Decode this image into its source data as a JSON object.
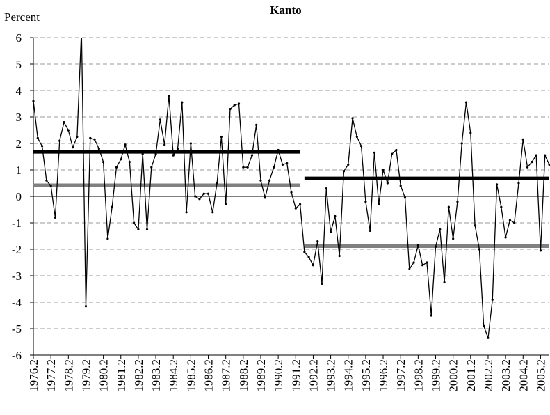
{
  "chart_data": {
    "type": "line",
    "title": "Kanto",
    "ylabel": "Percent",
    "categories": [
      "1976.2",
      null,
      null,
      null,
      "1977.2",
      null,
      null,
      null,
      "1978.2",
      null,
      null,
      null,
      "1979.2",
      null,
      null,
      null,
      "1980.2",
      null,
      null,
      null,
      "1981.2",
      null,
      null,
      null,
      "1982.2",
      null,
      null,
      null,
      "1983.2",
      null,
      null,
      null,
      "1984.2",
      null,
      null,
      null,
      "1985.2",
      null,
      null,
      null,
      "1986.2",
      null,
      null,
      null,
      "1987.2",
      null,
      null,
      null,
      "1988.2",
      null,
      null,
      null,
      "1989.2",
      null,
      null,
      null,
      "1990.2",
      null,
      null,
      null,
      "1991.2",
      null,
      null,
      null,
      "1992.2",
      null,
      null,
      null,
      "1993.2",
      null,
      null,
      null,
      "1994.2",
      null,
      null,
      null,
      "1995.2",
      null,
      null,
      null,
      "1996.2",
      null,
      null,
      null,
      "1997.2",
      null,
      null,
      null,
      "1998.2",
      null,
      null,
      null,
      "1999.2",
      null,
      null,
      null,
      "2000.2",
      null,
      null,
      null,
      "2001.2",
      null,
      null,
      null,
      "2002.2",
      null,
      null,
      null,
      "2003.2",
      null,
      null,
      null,
      "2004.2",
      null,
      null,
      null,
      "2005.2",
      null,
      null
    ],
    "series": [
      {
        "color": "#000000",
        "width": 1.3,
        "markers": true,
        "values": [
          3.6,
          2.2,
          1.9,
          0.6,
          0.4,
          -0.8,
          2.1,
          2.8,
          2.5,
          1.85,
          2.25,
          6.3,
          -4.15,
          2.2,
          2.15,
          1.8,
          1.3,
          -1.6,
          -0.4,
          1.1,
          1.4,
          1.95,
          1.3,
          -1.0,
          -1.25,
          1.6,
          -1.25,
          1.1,
          1.6,
          2.9,
          1.95,
          3.8,
          1.55,
          1.8,
          3.55,
          -0.6,
          2.0,
          0.0,
          -0.1,
          0.1,
          0.1,
          -0.6,
          0.5,
          2.25,
          -0.3,
          3.3,
          3.45,
          3.5,
          1.1,
          1.1,
          1.55,
          2.7,
          0.6,
          -0.05,
          0.6,
          1.1,
          1.75,
          1.2,
          1.25,
          0.15,
          -0.45,
          -0.3,
          -2.1,
          -2.3,
          -2.6,
          -1.7,
          -3.3,
          0.3,
          -1.35,
          -0.75,
          -2.25,
          0.95,
          1.2,
          2.95,
          2.25,
          1.9,
          -0.2,
          -1.3,
          1.65,
          -0.3,
          1.0,
          0.5,
          1.6,
          1.75,
          0.4,
          -0.05,
          -2.75,
          -2.5,
          -1.85,
          -2.6,
          -2.5,
          -4.5,
          -1.9,
          -1.25,
          -3.25,
          -0.4,
          -1.6,
          -0.2,
          2.0,
          3.55,
          2.4,
          -1.1,
          -2.0,
          -4.9,
          -5.35,
          -3.9,
          0.45,
          -0.4,
          -1.55,
          -0.9,
          -1.0,
          0.5,
          2.15,
          1.1,
          1.3,
          1.55,
          -2.05,
          1.55,
          1.2
        ]
      },
      {
        "color": "#000000",
        "width": 5,
        "markers": false,
        "values": [
          1.68,
          1.68,
          1.68,
          1.68,
          1.68,
          1.68,
          1.68,
          1.68,
          1.68,
          1.68,
          1.68,
          1.68,
          1.68,
          1.68,
          1.68,
          1.68,
          1.68,
          1.68,
          1.68,
          1.68,
          1.68,
          1.68,
          1.68,
          1.68,
          1.68,
          1.68,
          1.68,
          1.68,
          1.68,
          1.68,
          1.68,
          1.68,
          1.68,
          1.68,
          1.68,
          1.68,
          1.68,
          1.68,
          1.68,
          1.68,
          1.68,
          1.68,
          1.68,
          1.68,
          1.68,
          1.68,
          1.68,
          1.68,
          1.68,
          1.68,
          1.68,
          1.68,
          1.68,
          1.68,
          1.68,
          1.68,
          1.68,
          1.68,
          1.68,
          1.68,
          1.68,
          1.68,
          null,
          null,
          null,
          null,
          null,
          null,
          null,
          null,
          null,
          null,
          null,
          null,
          null,
          null,
          null,
          null,
          null,
          null,
          null,
          null,
          null,
          null,
          null,
          null,
          null,
          null,
          null,
          null,
          null,
          null,
          null,
          null,
          null,
          null,
          null,
          null,
          null,
          null,
          null,
          null,
          null,
          null,
          null,
          null,
          null,
          null,
          null,
          null,
          null,
          null,
          null,
          null,
          null,
          null,
          null,
          null,
          null
        ]
      },
      {
        "color": "#808080",
        "width": 5,
        "markers": false,
        "values": [
          0.42,
          0.42,
          0.42,
          0.42,
          0.42,
          0.42,
          0.42,
          0.42,
          0.42,
          0.42,
          0.42,
          0.42,
          0.42,
          0.42,
          0.42,
          0.42,
          0.42,
          0.42,
          0.42,
          0.42,
          0.42,
          0.42,
          0.42,
          0.42,
          0.42,
          0.42,
          0.42,
          0.42,
          0.42,
          0.42,
          0.42,
          0.42,
          0.42,
          0.42,
          0.42,
          0.42,
          0.42,
          0.42,
          0.42,
          0.42,
          0.42,
          0.42,
          0.42,
          0.42,
          0.42,
          0.42,
          0.42,
          0.42,
          0.42,
          0.42,
          0.42,
          0.42,
          0.42,
          0.42,
          0.42,
          0.42,
          0.42,
          0.42,
          0.42,
          0.42,
          0.42,
          0.42,
          null,
          null,
          null,
          null,
          null,
          null,
          null,
          null,
          null,
          null,
          null,
          null,
          null,
          null,
          null,
          null,
          null,
          null,
          null,
          null,
          null,
          null,
          null,
          null,
          null,
          null,
          null,
          null,
          null,
          null,
          null,
          null,
          null,
          null,
          null,
          null,
          null,
          null,
          null,
          null,
          null,
          null,
          null,
          null,
          null,
          null,
          null,
          null,
          null,
          null,
          null,
          null,
          null,
          null,
          null,
          null,
          null
        ]
      },
      {
        "color": "#000000",
        "width": 5,
        "markers": false,
        "values": [
          null,
          null,
          null,
          null,
          null,
          null,
          null,
          null,
          null,
          null,
          null,
          null,
          null,
          null,
          null,
          null,
          null,
          null,
          null,
          null,
          null,
          null,
          null,
          null,
          null,
          null,
          null,
          null,
          null,
          null,
          null,
          null,
          null,
          null,
          null,
          null,
          null,
          null,
          null,
          null,
          null,
          null,
          null,
          null,
          null,
          null,
          null,
          null,
          null,
          null,
          null,
          null,
          null,
          null,
          null,
          null,
          null,
          null,
          null,
          null,
          null,
          null,
          0.68,
          0.68,
          0.68,
          0.68,
          0.68,
          0.68,
          0.68,
          0.68,
          0.68,
          0.68,
          0.68,
          0.68,
          0.68,
          0.68,
          0.68,
          0.68,
          0.68,
          0.68,
          0.68,
          0.68,
          0.68,
          0.68,
          0.68,
          0.68,
          0.68,
          0.68,
          0.68,
          0.68,
          0.68,
          0.68,
          0.68,
          0.68,
          0.68,
          0.68,
          0.68,
          0.68,
          0.68,
          0.68,
          0.68,
          0.68,
          0.68,
          0.68,
          0.68,
          0.68,
          0.68,
          0.68,
          0.68,
          0.68,
          0.68,
          0.68,
          0.68,
          0.68,
          0.68,
          0.68,
          0.68,
          0.68,
          0.68
        ]
      },
      {
        "color": "#808080",
        "width": 5,
        "markers": false,
        "values": [
          null,
          null,
          null,
          null,
          null,
          null,
          null,
          null,
          null,
          null,
          null,
          null,
          null,
          null,
          null,
          null,
          null,
          null,
          null,
          null,
          null,
          null,
          null,
          null,
          null,
          null,
          null,
          null,
          null,
          null,
          null,
          null,
          null,
          null,
          null,
          null,
          null,
          null,
          null,
          null,
          null,
          null,
          null,
          null,
          null,
          null,
          null,
          null,
          null,
          null,
          null,
          null,
          null,
          null,
          null,
          null,
          null,
          null,
          null,
          null,
          null,
          null,
          -1.88,
          -1.88,
          -1.88,
          -1.88,
          -1.88,
          -1.88,
          -1.88,
          -1.88,
          -1.88,
          -1.88,
          -1.88,
          -1.88,
          -1.88,
          -1.88,
          -1.88,
          -1.88,
          -1.88,
          -1.88,
          -1.88,
          -1.88,
          -1.88,
          -1.88,
          -1.88,
          -1.88,
          -1.88,
          -1.88,
          -1.88,
          -1.88,
          -1.88,
          -1.88,
          -1.88,
          -1.88,
          -1.88,
          -1.88,
          -1.88,
          -1.88,
          -1.88,
          -1.88,
          -1.88,
          -1.88,
          -1.88,
          -1.88,
          -1.88,
          -1.88,
          -1.88,
          -1.88,
          -1.88,
          -1.88,
          -1.88,
          -1.88,
          -1.88,
          -1.88,
          -1.88,
          -1.88,
          -1.88,
          -1.88,
          -1.88
        ]
      }
    ],
    "ylim": [
      -6,
      6
    ],
    "yticks": [
      -6,
      -5,
      -4,
      -3,
      -2,
      -1,
      0,
      1,
      2,
      3,
      4,
      5,
      6
    ],
    "grid": true
  }
}
